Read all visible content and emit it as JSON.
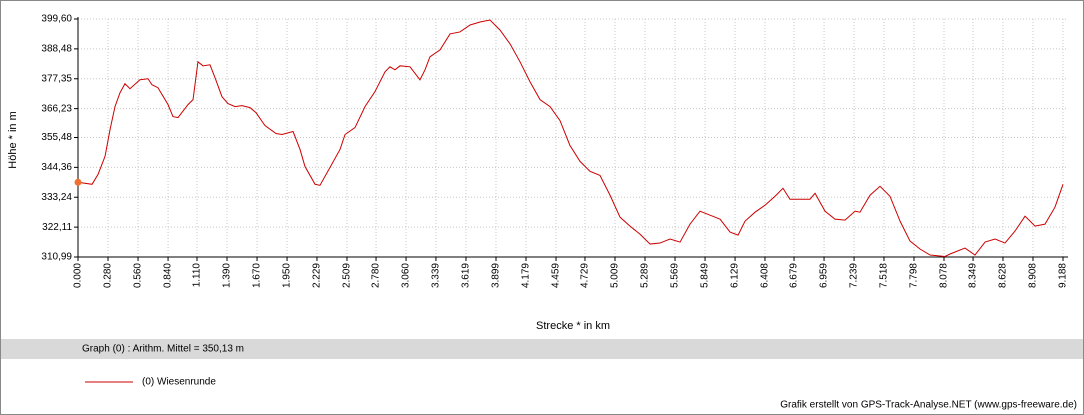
{
  "chart_data": {
    "type": "line",
    "xlabel": "Strecke *  in  km",
    "ylabel": "Höhe *  in  m",
    "annotation": "Graph (0) :   Arithm. Mittel = 350,13 m",
    "credit": "Grafik erstellt von GPS-Track-Analyse.NET (www.gps-freeware.de)",
    "grid": true,
    "xlim": [
      0,
      9.188
    ],
    "ylim": [
      310.99,
      399.6
    ],
    "xticks": [
      {
        "value": 0,
        "label": "0.000"
      },
      {
        "value": 0.28,
        "label": "0.280"
      },
      {
        "value": 0.56,
        "label": "0.560"
      },
      {
        "value": 0.84,
        "label": "0.840"
      },
      {
        "value": 1.11,
        "label": "1.110"
      },
      {
        "value": 1.39,
        "label": "1.390"
      },
      {
        "value": 1.67,
        "label": "1.670"
      },
      {
        "value": 1.95,
        "label": "1.950"
      },
      {
        "value": 2.229,
        "label": "2.229"
      },
      {
        "value": 2.509,
        "label": "2.509"
      },
      {
        "value": 2.78,
        "label": "2.780"
      },
      {
        "value": 3.06,
        "label": "3.060"
      },
      {
        "value": 3.339,
        "label": "3.339"
      },
      {
        "value": 3.619,
        "label": "3.619"
      },
      {
        "value": 3.899,
        "label": "3.899"
      },
      {
        "value": 4.179,
        "label": "4.179"
      },
      {
        "value": 4.459,
        "label": "4.459"
      },
      {
        "value": 4.729,
        "label": "4.729"
      },
      {
        "value": 5.009,
        "label": "5.009"
      },
      {
        "value": 5.289,
        "label": "5.289"
      },
      {
        "value": 5.569,
        "label": "5.569"
      },
      {
        "value": 5.849,
        "label": "5.849"
      },
      {
        "value": 6.129,
        "label": "6.129"
      },
      {
        "value": 6.408,
        "label": "6.408"
      },
      {
        "value": 6.679,
        "label": "6.679"
      },
      {
        "value": 6.959,
        "label": "6.959"
      },
      {
        "value": 7.239,
        "label": "7.239"
      },
      {
        "value": 7.518,
        "label": "7.518"
      },
      {
        "value": 7.798,
        "label": "7.798"
      },
      {
        "value": 8.078,
        "label": "8.078"
      },
      {
        "value": 8.349,
        "label": "8.349"
      },
      {
        "value": 8.628,
        "label": "8.628"
      },
      {
        "value": 8.908,
        "label": "8.908"
      },
      {
        "value": 9.188,
        "label": "9.188"
      }
    ],
    "yticks": [
      {
        "value": 310.99,
        "label": "310,99"
      },
      {
        "value": 322.11,
        "label": "322,11"
      },
      {
        "value": 333.24,
        "label": "333,24"
      },
      {
        "value": 344.36,
        "label": "344,36"
      },
      {
        "value": 355.48,
        "label": "355,48"
      },
      {
        "value": 366.23,
        "label": "366,23"
      },
      {
        "value": 377.35,
        "label": "377,35"
      },
      {
        "value": 388.48,
        "label": "388,48"
      },
      {
        "value": 399.6,
        "label": "399,60"
      }
    ],
    "x": [
      0,
      0.131,
      0.187,
      0.252,
      0.299,
      0.345,
      0.392,
      0.438,
      0.485,
      0.578,
      0.653,
      0.69,
      0.746,
      0.84,
      0.886,
      0.933,
      1.026,
      1.073,
      1.119,
      1.166,
      1.231,
      1.278,
      1.343,
      1.399,
      1.465,
      1.53,
      1.604,
      1.66,
      1.744,
      1.847,
      1.903,
      2.006,
      2.071,
      2.117,
      2.211,
      2.257,
      2.351,
      2.444,
      2.491,
      2.584,
      2.677,
      2.77,
      2.864,
      2.91,
      2.957,
      3.004,
      3.097,
      3.19,
      3.237,
      3.283,
      3.377,
      3.47,
      3.563,
      3.657,
      3.75,
      3.843,
      3.936,
      4.03,
      4.123,
      4.216,
      4.31,
      4.403,
      4.496,
      4.589,
      4.683,
      4.776,
      4.869,
      4.963,
      5.056,
      5.149,
      5.242,
      5.336,
      5.429,
      5.522,
      5.616,
      5.709,
      5.802,
      5.896,
      5.989,
      6.082,
      6.157,
      6.222,
      6.315,
      6.408,
      6.502,
      6.576,
      6.641,
      6.735,
      6.828,
      6.875,
      6.968,
      7.061,
      7.155,
      7.248,
      7.294,
      7.388,
      7.481,
      7.574,
      7.668,
      7.761,
      7.854,
      7.948,
      8.087,
      8.134,
      8.274,
      8.367,
      8.461,
      8.554,
      8.647,
      8.74,
      8.834,
      8.927,
      9.02,
      9.113,
      9.188
    ],
    "series": [
      {
        "name": "(0) Wiesenrunde",
        "color": "#cc0000",
        "values": [
          338.8,
          338.06,
          341.76,
          348.44,
          358.45,
          366.97,
          372.16,
          375.5,
          373.65,
          376.98,
          377.35,
          375.13,
          374.02,
          367.72,
          363.27,
          362.9,
          367.72,
          369.57,
          383.66,
          382.17,
          382.55,
          377.73,
          370.68,
          368.09,
          366.97,
          367.34,
          366.6,
          364.75,
          359.93,
          356.96,
          356.59,
          357.71,
          351.03,
          344.73,
          338.06,
          337.68,
          344.36,
          351.03,
          356.59,
          359.19,
          366.97,
          372.54,
          379.95,
          381.8,
          380.69,
          382.17,
          381.8,
          376.98,
          380.69,
          385.51,
          388.11,
          394.04,
          394.78,
          397.38,
          398.49,
          399.23,
          395.52,
          390.33,
          383.66,
          376.24,
          369.57,
          366.97,
          361.78,
          352.51,
          346.58,
          342.88,
          341.39,
          333.98,
          325.82,
          322.48,
          319.52,
          315.81,
          316.18,
          317.66,
          316.55,
          323.23,
          328.05,
          326.56,
          325.08,
          320.26,
          319.15,
          324.34,
          327.67,
          330.27,
          333.61,
          336.57,
          332.49,
          332.49,
          332.49,
          334.72,
          328.05,
          325.08,
          324.71,
          328.05,
          327.67,
          333.98,
          337.31,
          333.61,
          324.34,
          316.92,
          313.96,
          311.73,
          311.2,
          312.1,
          314.33,
          311.73,
          316.55,
          317.66,
          316.18,
          320.63,
          326.19,
          322.48,
          323.23,
          329.53,
          338.06
        ]
      }
    ]
  }
}
